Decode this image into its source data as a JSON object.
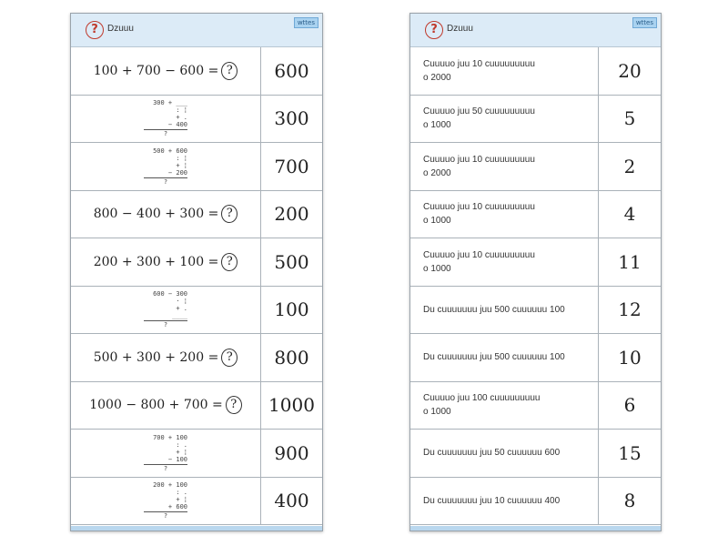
{
  "left": {
    "header": {
      "title": "Dzuuu",
      "badge": "wttes"
    },
    "rows": [
      {
        "type": "eq",
        "q": "100 + 700 − 600 =",
        "a": "600"
      },
      {
        "type": "vert",
        "lines": [
          "300 + ___",
          ": ¦",
          "+ .",
          "− 400",
          "?"
        ],
        "a": "300"
      },
      {
        "type": "vert",
        "lines": [
          "500 + 600",
          ": ¦",
          "+ ¦",
          "− 200",
          "?"
        ],
        "a": "700"
      },
      {
        "type": "eq",
        "q": "800 − 400 + 300 =",
        "a": "200"
      },
      {
        "type": "eq",
        "q": "200 + 300 + 100 =",
        "a": "500"
      },
      {
        "type": "vert",
        "lines": [
          "600 − 300",
          "· ¦",
          "+ .",
          "____",
          "?"
        ],
        "a": "100"
      },
      {
        "type": "eq",
        "q": "500 + 300 + 200 =",
        "a": "800"
      },
      {
        "type": "eq",
        "q": "1000 − 800 + 700 =",
        "a": "1000"
      },
      {
        "type": "vert",
        "lines": [
          "700 + 100",
          ": .",
          "+ ¦",
          "− 100",
          "?"
        ],
        "a": "900"
      },
      {
        "type": "vert",
        "lines": [
          "200 + 100",
          ": .",
          "+ ¦",
          "+ 600",
          "?"
        ],
        "a": "400"
      }
    ],
    "mark": "?"
  },
  "right": {
    "header": {
      "title": "Dzuuu",
      "badge": "wttes"
    },
    "rows": [
      {
        "q": "Cuuuuo juu 10 cuuuuuuuuu",
        "q2": "o 2000",
        "a": "20"
      },
      {
        "q": "Cuuuuo juu 50 cuuuuuuuuu",
        "q2": "o 1000",
        "a": "5"
      },
      {
        "q": "Cuuuuo juu 10 cuuuuuuuuu",
        "q2": "o 2000",
        "a": "2"
      },
      {
        "q": "Cuuuuo juu 10 cuuuuuuuuu",
        "q2": "o 1000",
        "a": "4"
      },
      {
        "q": "Cuuuuo juu 10 cuuuuuuuuu",
        "q2": "o 1000",
        "a": "11"
      },
      {
        "q": "Du cuuuuuuu juu 500 cuuuuuu 100",
        "q2": "",
        "a": "12"
      },
      {
        "q": "Du cuuuuuuu juu 500 cuuuuuu 100",
        "q2": "",
        "a": "10"
      },
      {
        "q": "Cuuuuo juu 100 cuuuuuuuuu",
        "q2": "o 1000",
        "a": "6"
      },
      {
        "q": "Du cuuuuuuu juu 50 cuuuuuu 600",
        "q2": "",
        "a": "15"
      },
      {
        "q": "Du cuuuuuuu juu 10 cuuuuuu 400",
        "q2": "",
        "a": "8"
      }
    ]
  }
}
